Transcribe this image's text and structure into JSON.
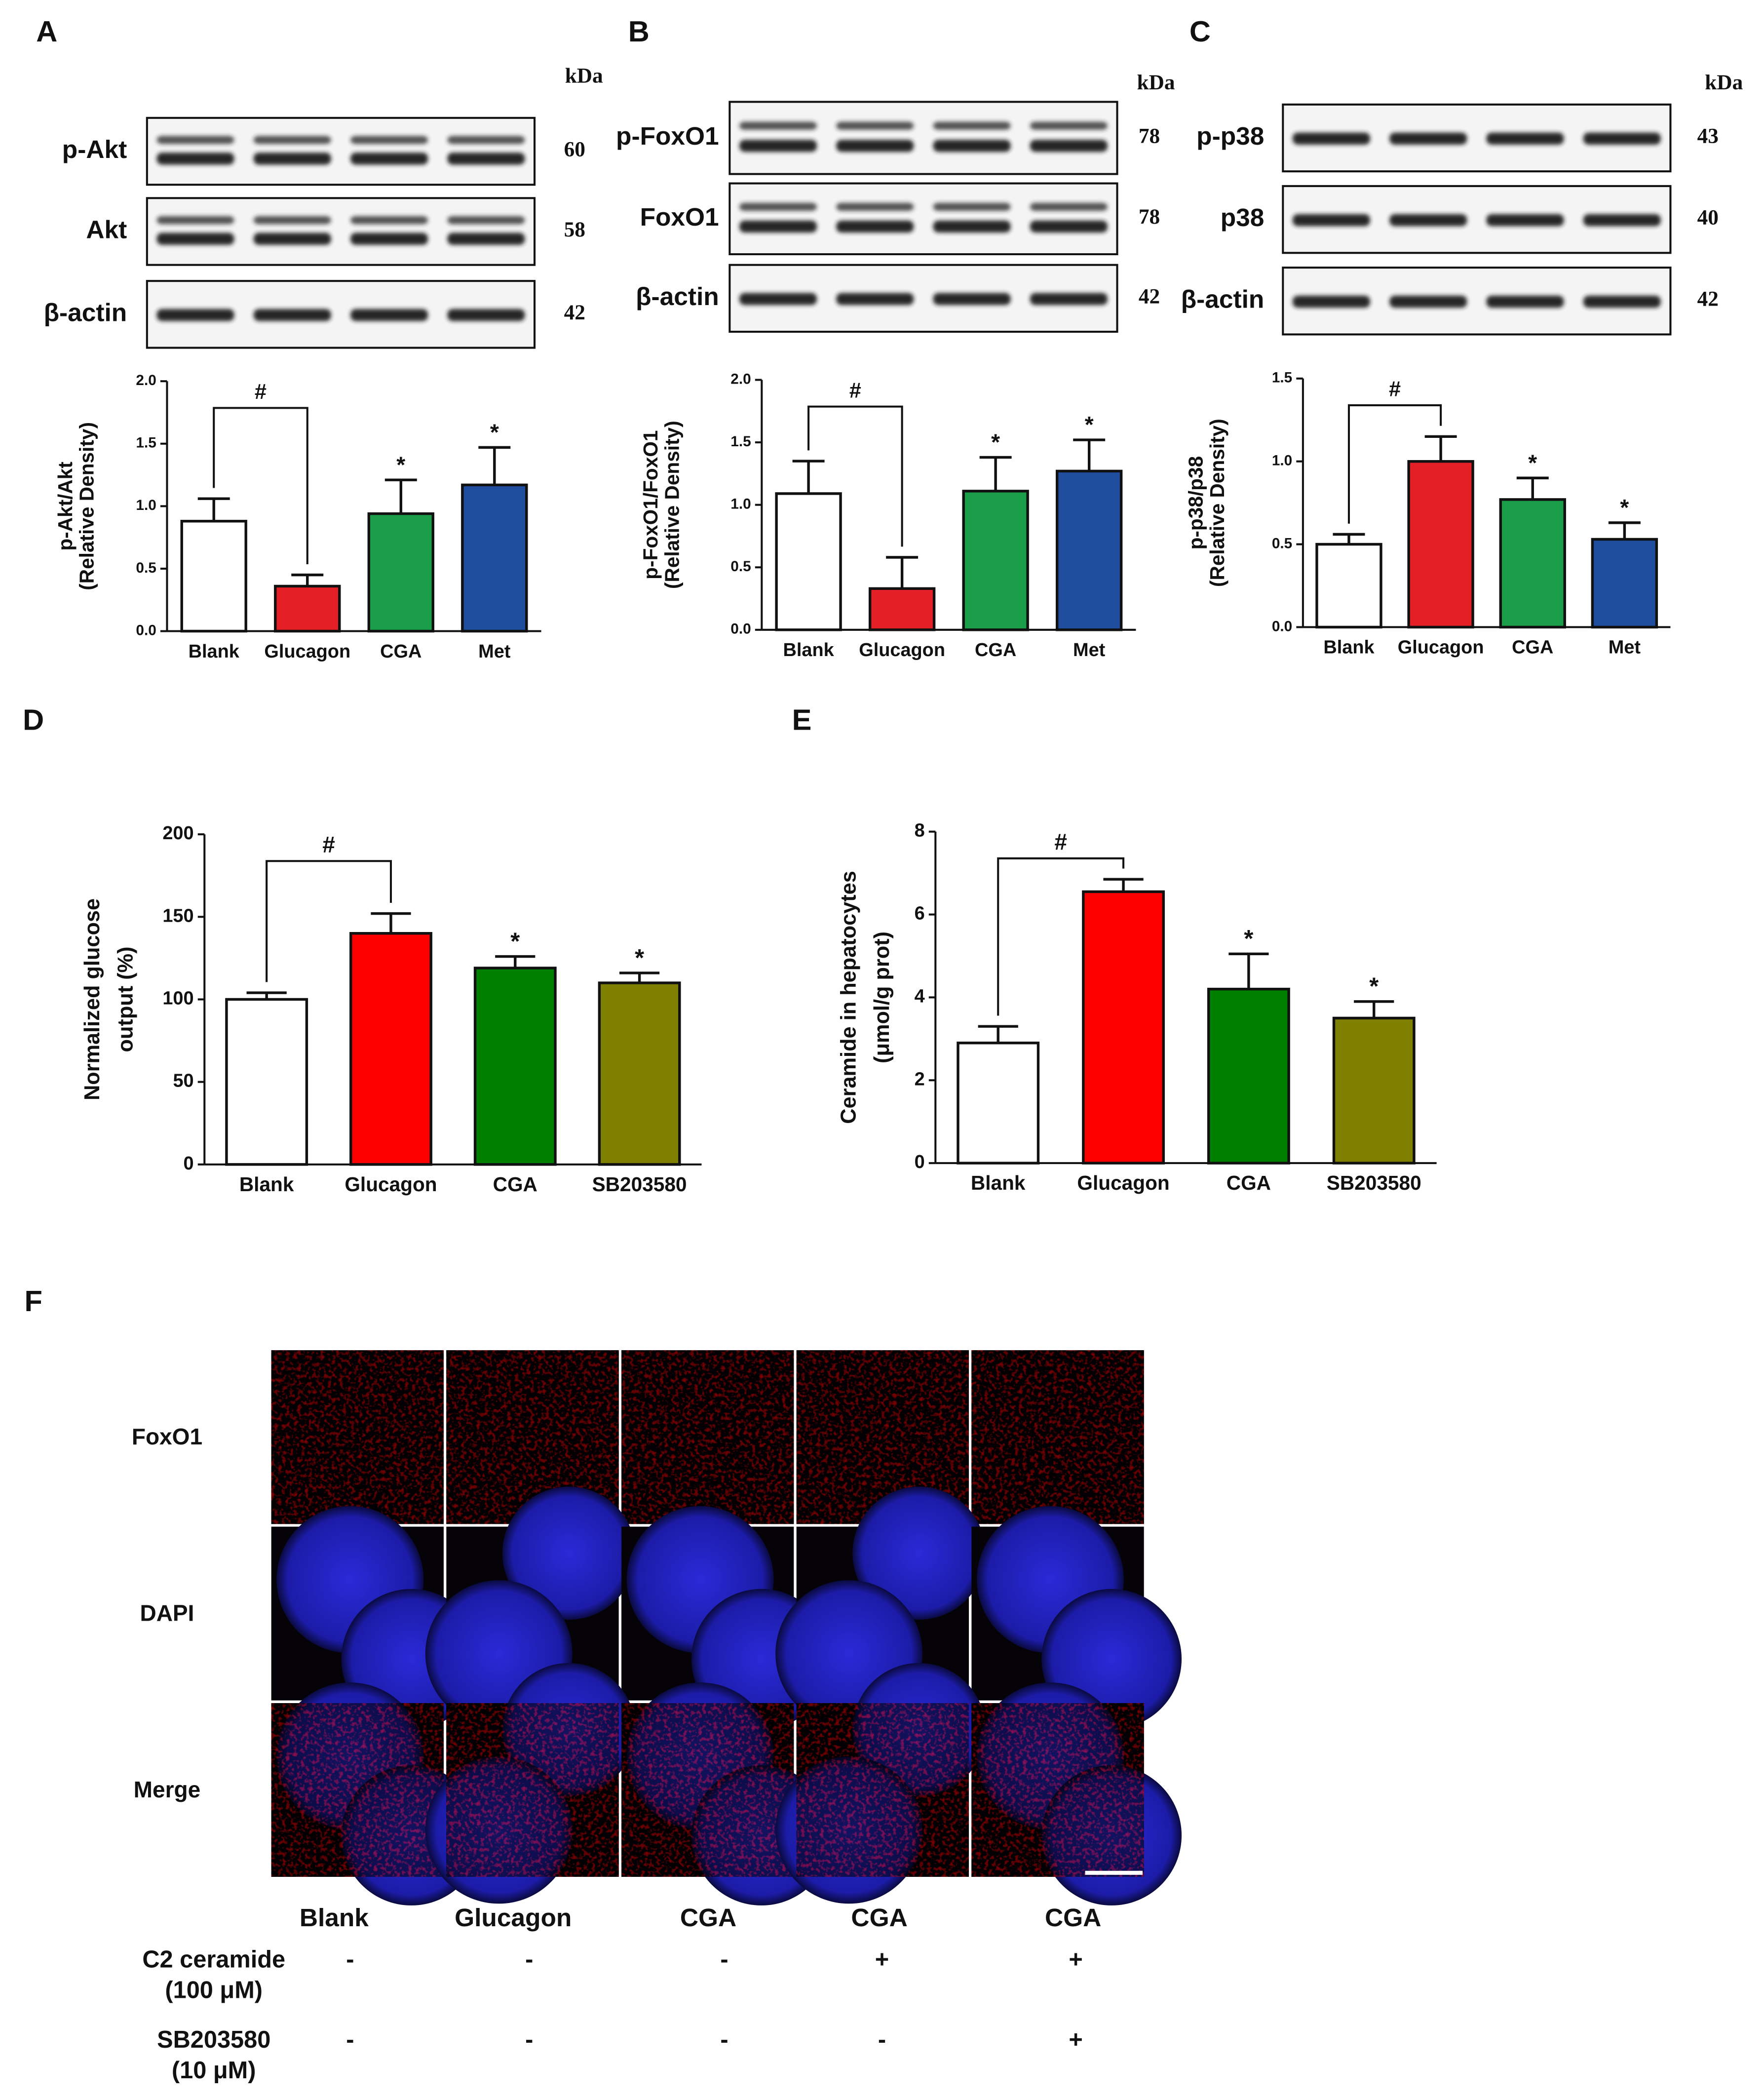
{
  "chart_data": [
    {
      "type": "bar",
      "panel": "A",
      "blot": {
        "unit": "kDa",
        "rows": [
          {
            "label": "p-Akt",
            "kda": 60
          },
          {
            "label": "Akt",
            "kda": 58
          },
          {
            "label": "β-actin",
            "kda": 42
          }
        ]
      },
      "ylabel": [
        "p-Akt/Akt",
        "(Relative Density)"
      ],
      "categories": [
        "Blank",
        "Glucagon",
        "CGA",
        "Met"
      ],
      "values": [
        0.88,
        0.36,
        0.94,
        1.17
      ],
      "errors": [
        0.18,
        0.09,
        0.27,
        0.3
      ],
      "colors": [
        "#ffffff",
        "#e41f26",
        "#1a9e4a",
        "#1f4e9e"
      ],
      "value_annotations": [
        null,
        null,
        "*",
        "*"
      ],
      "bracket_label": "#",
      "ylim": [
        0,
        2
      ],
      "yticks": [
        {
          "value": 0,
          "label": "0.0"
        },
        0.5,
        {
          "value": 1,
          "label": "1.0"
        },
        1.5,
        {
          "value": 2,
          "label": "2.0"
        }
      ]
    },
    {
      "type": "bar",
      "panel": "B",
      "blot": {
        "unit": "kDa",
        "rows": [
          {
            "label": "p-FoxO1",
            "kda": 78
          },
          {
            "label": "FoxO1",
            "kda": 78
          },
          {
            "label": "β-actin",
            "kda": 42
          }
        ]
      },
      "ylabel": [
        "p-FoxO1/FoxO1",
        "(Relative Density)"
      ],
      "categories": [
        "Blank",
        "Glucagon",
        "CGA",
        "Met"
      ],
      "values": [
        1.09,
        0.33,
        1.11,
        1.27
      ],
      "errors": [
        0.26,
        0.25,
        0.27,
        0.25
      ],
      "colors": [
        "#ffffff",
        "#e41f26",
        "#1a9e4a",
        "#1f4e9e"
      ],
      "value_annotations": [
        null,
        null,
        "*",
        "*"
      ],
      "bracket_label": "#",
      "ylim": [
        0,
        2
      ],
      "yticks": [
        {
          "value": 0,
          "label": "0.0"
        },
        0.5,
        {
          "value": 1,
          "label": "1.0"
        },
        1.5,
        {
          "value": 2,
          "label": "2.0"
        }
      ]
    },
    {
      "type": "bar",
      "panel": "C",
      "blot": {
        "unit": "kDa",
        "rows": [
          {
            "label": "p-p38",
            "kda": 43
          },
          {
            "label": "p38",
            "kda": 40
          },
          {
            "label": "β-actin",
            "kda": 42
          }
        ]
      },
      "ylabel": [
        "p-p38/p38",
        "(Relative Density)"
      ],
      "categories": [
        "Blank",
        "Glucagon",
        "CGA",
        "Met"
      ],
      "values": [
        0.5,
        1.0,
        0.77,
        0.53
      ],
      "errors": [
        0.06,
        0.15,
        0.13,
        0.1
      ],
      "colors": [
        "#ffffff",
        "#e41f26",
        "#1a9e4a",
        "#1f4e9e"
      ],
      "value_annotations": [
        null,
        null,
        "*",
        "*"
      ],
      "bracket_label": "#",
      "ylim": [
        0,
        1.5
      ],
      "yticks": [
        {
          "value": 0,
          "label": "0.0"
        },
        0.5,
        {
          "value": 1,
          "label": "1.0"
        },
        1.5
      ]
    },
    {
      "type": "bar",
      "panel": "D",
      "ylabel": [
        "Normalized glucose",
        "output (%)"
      ],
      "categories": [
        "Blank",
        "Glucagon",
        "CGA",
        "SB203580"
      ],
      "values": [
        100,
        140,
        119,
        110
      ],
      "errors": [
        4,
        12,
        7,
        6
      ],
      "colors": [
        "#ffffff",
        "#ff0000",
        "#008000",
        "#808000"
      ],
      "value_annotations": [
        null,
        null,
        "*",
        "*"
      ],
      "bracket_label": "#",
      "ylim": [
        0,
        200
      ],
      "yticks": [
        0,
        50,
        100,
        150,
        200
      ]
    },
    {
      "type": "bar",
      "panel": "E",
      "ylabel": [
        "Ceramide in hepatocytes",
        "(μmol/g prot)"
      ],
      "categories": [
        "Blank",
        "Glucagon",
        "CGA",
        "SB203580"
      ],
      "values": [
        2.9,
        6.55,
        4.2,
        3.5
      ],
      "errors": [
        0.4,
        0.3,
        0.85,
        0.4
      ],
      "colors": [
        "#ffffff",
        "#ff0000",
        "#008000",
        "#808000"
      ],
      "value_annotations": [
        null,
        null,
        "*",
        "*"
      ],
      "bracket_label": "#",
      "ylim": [
        0,
        8
      ],
      "yticks": [
        0,
        2,
        4,
        6,
        8
      ]
    }
  ],
  "figure_f": {
    "panel": "F",
    "rows": [
      "FoxO1",
      "DAPI",
      "Merge"
    ],
    "columns": [
      "Blank",
      "Glucagon",
      "CGA",
      "CGA",
      "CGA"
    ],
    "treatments": [
      {
        "label": [
          "C2 ceramide",
          "(100 μM)"
        ],
        "signs": [
          "-",
          "-",
          "-",
          "+",
          "+"
        ]
      },
      {
        "label": [
          "SB203580",
          "(10 μM)"
        ],
        "signs": [
          "-",
          "-",
          "-",
          "-",
          "+"
        ]
      }
    ]
  }
}
